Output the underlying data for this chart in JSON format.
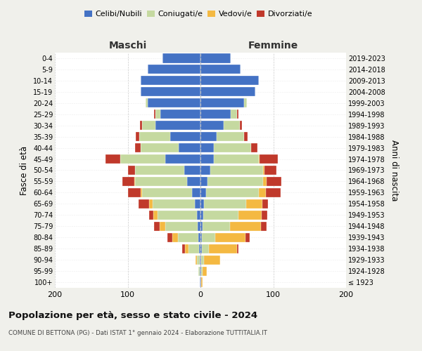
{
  "age_groups": [
    "100+",
    "95-99",
    "90-94",
    "85-89",
    "80-84",
    "75-79",
    "70-74",
    "65-69",
    "60-64",
    "55-59",
    "50-54",
    "45-49",
    "40-44",
    "35-39",
    "30-34",
    "25-29",
    "20-24",
    "15-19",
    "10-14",
    "5-9",
    "0-4"
  ],
  "birth_years": [
    "≤ 1923",
    "1924-1928",
    "1929-1933",
    "1934-1938",
    "1939-1943",
    "1944-1948",
    "1949-1953",
    "1954-1958",
    "1959-1963",
    "1964-1968",
    "1969-1973",
    "1974-1978",
    "1979-1983",
    "1984-1988",
    "1989-1993",
    "1994-1998",
    "1999-2003",
    "2004-2008",
    "2009-2013",
    "2014-2018",
    "2019-2023"
  ],
  "maschi": {
    "celibi": [
      1,
      1,
      1,
      2,
      3,
      4,
      5,
      8,
      12,
      18,
      22,
      48,
      30,
      42,
      62,
      55,
      72,
      82,
      82,
      72,
      52
    ],
    "coniugati": [
      0,
      2,
      4,
      14,
      28,
      44,
      54,
      58,
      68,
      72,
      68,
      62,
      52,
      42,
      18,
      7,
      3,
      0,
      0,
      0,
      0
    ],
    "vedovi": [
      0,
      0,
      2,
      5,
      8,
      8,
      6,
      5,
      2,
      1,
      0,
      0,
      0,
      0,
      0,
      0,
      0,
      0,
      0,
      0,
      0
    ],
    "divorziati": [
      0,
      0,
      0,
      4,
      6,
      8,
      6,
      14,
      18,
      16,
      10,
      20,
      8,
      5,
      3,
      2,
      0,
      0,
      0,
      0,
      0
    ]
  },
  "femmine": {
    "nubili": [
      1,
      1,
      1,
      2,
      2,
      3,
      4,
      5,
      8,
      10,
      14,
      18,
      18,
      22,
      32,
      42,
      60,
      75,
      80,
      55,
      42
    ],
    "coniugate": [
      0,
      2,
      4,
      10,
      18,
      38,
      48,
      58,
      72,
      76,
      72,
      62,
      52,
      38,
      22,
      8,
      4,
      0,
      0,
      0,
      0
    ],
    "vedove": [
      2,
      6,
      22,
      38,
      42,
      42,
      32,
      22,
      10,
      5,
      2,
      1,
      0,
      0,
      0,
      0,
      0,
      0,
      0,
      0,
      0
    ],
    "divorziate": [
      0,
      0,
      0,
      2,
      6,
      8,
      8,
      8,
      20,
      20,
      16,
      25,
      8,
      5,
      3,
      2,
      0,
      0,
      0,
      0,
      0
    ]
  },
  "colors": {
    "celibi": "#4472C4",
    "coniugati": "#c5d9a0",
    "vedovi": "#f4b942",
    "divorziati": "#c0392b"
  },
  "xlim": 200,
  "title": "Popolazione per età, sesso e stato civile - 2024",
  "subtitle": "COMUNE DI BETTONA (PG) - Dati ISTAT 1° gennaio 2024 - Elaborazione TUTTITALIA.IT",
  "xlabel_left": "Maschi",
  "xlabel_right": "Femmine",
  "ylabel_left": "Fasce di età",
  "ylabel_right": "Anni di nascita",
  "bg_color": "#f0f0eb",
  "plot_bg_color": "#ffffff"
}
